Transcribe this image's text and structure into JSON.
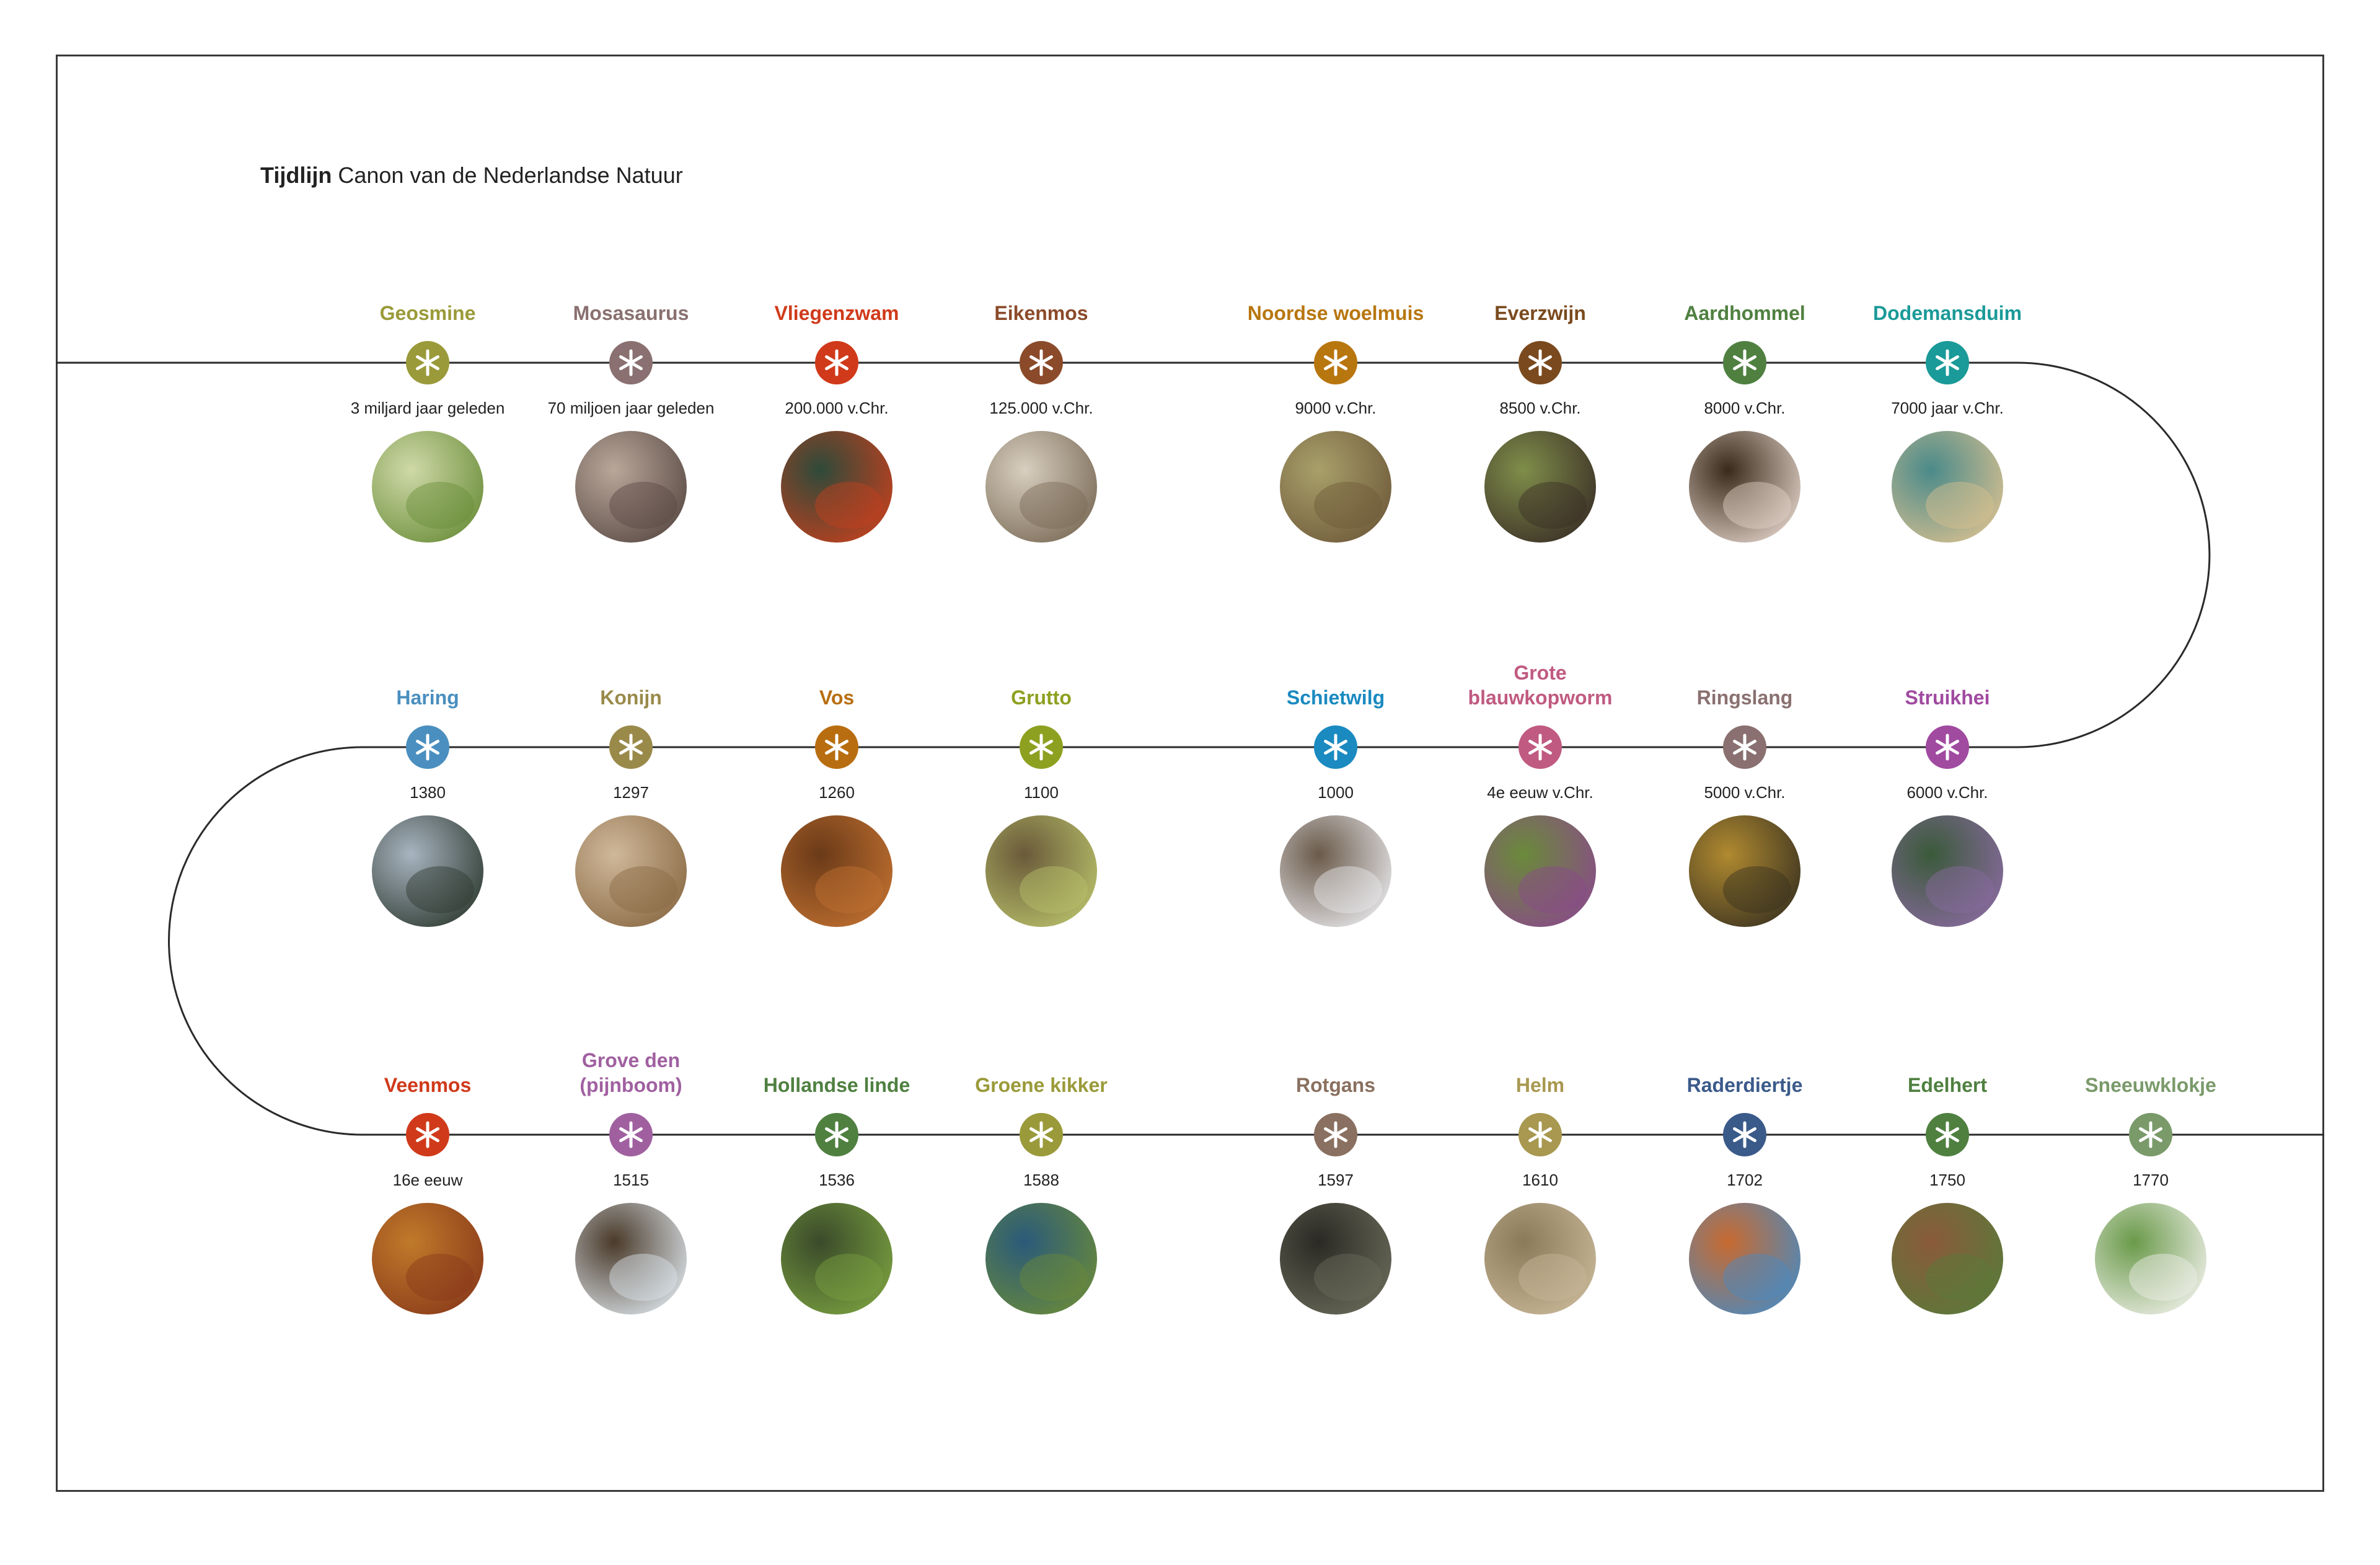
{
  "title": {
    "bold": "Tijdlijn",
    "rest": " Canon van de Nederlandse Natuur"
  },
  "items": [
    {
      "name": "Geosmine",
      "date": "3 miljard jaar geleden",
      "color": "#9a9a3a",
      "photo": [
        "#6b8e3a",
        "#cfd9a8"
      ]
    },
    {
      "name": "Mosasaurus",
      "date": "70 miljoen jaar geleden",
      "color": "#8a7070",
      "photo": [
        "#5a4a44",
        "#b9a79a"
      ]
    },
    {
      "name": "Vliegenzwam",
      "date": "200.000 v.Chr.",
      "color": "#d03a1a",
      "photo": [
        "#c4401e",
        "#2e4a3a"
      ]
    },
    {
      "name": "Eikenmos",
      "date": "125.000 v.Chr.",
      "color": "#8b4a2a",
      "photo": [
        "#7a6a56",
        "#d8cfc0"
      ]
    },
    {
      "name": "Noordse woelmuis",
      "date": "9000 v.Chr.",
      "color": "#b8760f",
      "photo": [
        "#6f5a3a",
        "#a8a06a"
      ]
    },
    {
      "name": "Everzwijn",
      "date": "8500 v.Chr.",
      "color": "#7a4a1e",
      "photo": [
        "#3a2e26",
        "#7f8e4a"
      ]
    },
    {
      "name": "Aardhommel",
      "date": "8000 v.Chr.",
      "color": "#4f8040",
      "photo": [
        "#e2d2c8",
        "#3a2a1a"
      ]
    },
    {
      "name": "Dodemansduim",
      "date": "7000 jaar v.Chr.",
      "color": "#1a9a98",
      "photo": [
        "#d8c090",
        "#4a8a8a"
      ]
    },
    {
      "name": "Haring",
      "date": "1380",
      "color": "#4a8fbf",
      "photo": [
        "#2e3a30",
        "#a8b4c0"
      ]
    },
    {
      "name": "Konijn",
      "date": "1297",
      "color": "#9a8a4a",
      "photo": [
        "#8a6a44",
        "#cfb89a"
      ]
    },
    {
      "name": "Vos",
      "date": "1260",
      "color": "#b86e10",
      "photo": [
        "#c07030",
        "#6a3a18"
      ]
    },
    {
      "name": "Grutto",
      "date": "1100",
      "color": "#8ea020",
      "photo": [
        "#b8c06a",
        "#6a5a3a"
      ]
    },
    {
      "name": "Schietwilg",
      "date": "1000",
      "color": "#1a8ac0",
      "photo": [
        "#e8e8ec",
        "#6a5a4a"
      ]
    },
    {
      "name": "Grote\nblauwkopworm",
      "date": "4e eeuw v.Chr.",
      "color": "#c05a80",
      "photo": [
        "#8a4a8a",
        "#6a8a3a"
      ]
    },
    {
      "name": "Ringslang",
      "date": "5000 v.Chr.",
      "color": "#8a7070",
      "photo": [
        "#3a3220",
        "#b08a30"
      ]
    },
    {
      "name": "Struikhei",
      "date": "6000 v.Chr.",
      "color": "#a04aa0",
      "photo": [
        "#8a6aa0",
        "#3a5a3a"
      ]
    },
    {
      "name": "Veenmos",
      "date": "16e eeuw",
      "color": "#d03a1a",
      "photo": [
        "#8a3a1a",
        "#c07a2a"
      ]
    },
    {
      "name": "Grove den\n(pijnboom)",
      "date": "1515",
      "color": "#a060a0",
      "photo": [
        "#dce4ea",
        "#4a3a2a"
      ]
    },
    {
      "name": "Hollandse linde",
      "date": "1536",
      "color": "#4f8040",
      "photo": [
        "#7aa040",
        "#3a4a2a"
      ]
    },
    {
      "name": "Groene kikker",
      "date": "1588",
      "color": "#9a9a3a",
      "photo": [
        "#6a8a3a",
        "#2a5a7a"
      ]
    },
    {
      "name": "Rotgans",
      "date": "1597",
      "color": "#8a7060",
      "photo": [
        "#6a6a5a",
        "#2a2a24"
      ]
    },
    {
      "name": "Helm",
      "date": "1610",
      "color": "#a89850",
      "photo": [
        "#c8b898",
        "#8a7a5a"
      ]
    },
    {
      "name": "Raderdiertje",
      "date": "1702",
      "color": "#3a5a8a",
      "photo": [
        "#4a8ac0",
        "#c86a30"
      ]
    },
    {
      "name": "Edelhert",
      "date": "1750",
      "color": "#4f8040",
      "photo": [
        "#5a7a3a",
        "#8a5a3a"
      ]
    },
    {
      "name": "Sneeuwklokje",
      "date": "1770",
      "color": "#7a9a6a",
      "photo": [
        "#f0f0ea",
        "#6a9a4a"
      ]
    }
  ]
}
